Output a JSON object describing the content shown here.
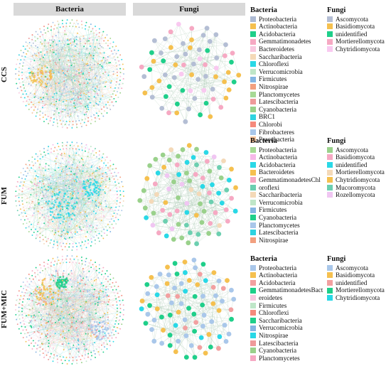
{
  "headers": {
    "bacteria": "Bacteria",
    "fungi": "Fungi"
  },
  "colors": {
    "Proteobacteria": "#aebbd4",
    "Actinobacteria": "#f5c04f",
    "Acidobacteria": "#1fcf8a",
    "Gemmatimonadetes": "#f6a9c3",
    "Bacteroidetes": "#f9c9e0",
    "Saccharibacteria": "#f4d9b8",
    "Chloroflexi": "#29d8e6",
    "Verrucomicrobia": "#bfe6c8",
    "Firmicutes": "#84b6e3",
    "Nitrospirae": "#f2a07f",
    "Planctomycetes": "#a7d995",
    "Latescibacteria": "#ef9a9a",
    "Cyanobacteria": "#9ad18b",
    "BRC1": "#2fd3e0",
    "Chlorobi": "#f58a7c",
    "Fibrobacteres": "#a9c7ea",
    "Parcubacteria": "#f7c49b",
    "Ascomycota": "#b4bed4",
    "Basidiomycota": "#f5c04f",
    "unidentified": "#1fcf8a",
    "Mortierellomycota": "#f6a9c3",
    "Chytridiomycota": "#f9c9f0",
    "Mucoromycota": "#6ccfb0",
    "Rozellomycota": "#f0c6f2"
  },
  "rows": [
    {
      "label": "CCS",
      "bacteria_legend": {
        "title": "Bacteria",
        "items": [
          {
            "label": "Proteobacteria",
            "color": "#aebbd4"
          },
          {
            "label": "Actinobacteria",
            "color": "#f5c04f"
          },
          {
            "label": "Acidobacteria",
            "color": "#1fcf8a"
          },
          {
            "label": "Gemmatimonadetes",
            "color": "#f6a9c3"
          },
          {
            "label": "Bacteroidetes",
            "color": "#f9c9e0"
          },
          {
            "label": "Saccharibacteria",
            "color": "#f4d9b8"
          },
          {
            "label": "Chloroflexi",
            "color": "#29d8e6"
          },
          {
            "label": "Verrucomicrobia",
            "color": "#bfe6c8"
          },
          {
            "label": "Firmicutes",
            "color": "#84b6e3"
          },
          {
            "label": "Nitrospirae",
            "color": "#f2a07f"
          },
          {
            "label": "Planctomycetes",
            "color": "#a7d995"
          },
          {
            "label": "Latescibacteria",
            "color": "#ef9a9a"
          },
          {
            "label": "Cyanobacteria",
            "color": "#9ad18b"
          },
          {
            "label": "BRC1",
            "color": "#2fd3e0"
          },
          {
            "label": "Chlorobi",
            "color": "#f58a7c"
          },
          {
            "label": "Fibrobacteres",
            "color": "#a9c7ea"
          },
          {
            "label": "Parcubacteria",
            "color": "#f7c49b"
          }
        ]
      },
      "fungi_legend": {
        "title": "Fungi",
        "items": [
          {
            "label": "Ascomycota",
            "color": "#b4bed4"
          },
          {
            "label": "Basidiomycota",
            "color": "#f5c04f"
          },
          {
            "label": "unidentified",
            "color": "#1fcf8a"
          },
          {
            "label": "Mortierellomycota",
            "color": "#f6a9c3"
          },
          {
            "label": "Chytridiomycota",
            "color": "#f9c9f0"
          }
        ]
      }
    },
    {
      "label": "FUM",
      "bacteria_legend": {
        "title": "Bacteria",
        "items": [
          {
            "label": "Proteobacteria",
            "color": "#a7d995"
          },
          {
            "label": "Actinobacteria",
            "color": "#f6b8e8"
          },
          {
            "label": "Acidobacteria",
            "color": "#29d8e6"
          },
          {
            "label": "Bacteroidetes",
            "color": "#f5c04f"
          },
          {
            "label": "GemmatimonadetesChl",
            "color": "#f6a9c3"
          },
          {
            "label": "oroflexi",
            "color": "#6ccfb0"
          },
          {
            "label": "Saccharibacteria",
            "color": "#f4d9b8"
          },
          {
            "label": "Verrucomicrobia",
            "color": "#bfe6c8"
          },
          {
            "label": "Firmicutes",
            "color": "#84b6e3"
          },
          {
            "label": "Cyanobacteria",
            "color": "#1fcf8a"
          },
          {
            "label": "Planctomycetes",
            "color": "#a9c7ea"
          },
          {
            "label": "Latescibacteria",
            "color": "#2fd3e0"
          },
          {
            "label": "Nitrospirae",
            "color": "#f2a07f"
          }
        ]
      },
      "fungi_legend": {
        "title": "Fungi",
        "items": [
          {
            "label": "Ascomycota",
            "color": "#9ad18b"
          },
          {
            "label": "Basidiomycota",
            "color": "#f6a9c3"
          },
          {
            "label": "unidentified",
            "color": "#29d8e6"
          },
          {
            "label": "Mortierellomycota",
            "color": "#f4d9b8"
          },
          {
            "label": "Chytridiomycota",
            "color": "#f5c04f"
          },
          {
            "label": "Mucoromycota",
            "color": "#6ccfb0"
          },
          {
            "label": "Rozellomycota",
            "color": "#f0c6f2"
          }
        ]
      }
    },
    {
      "label": "FUM+MIC",
      "bacteria_legend": {
        "title": "Bacteria",
        "items": [
          {
            "label": "Proteobacteria",
            "color": "#a9c7ea"
          },
          {
            "label": "Actinobacteria",
            "color": "#f5c04f"
          },
          {
            "label": "Acidobacteria",
            "color": "#f2a0a0"
          },
          {
            "label": "GemmatimonadetesBact",
            "color": "#1fcf8a"
          },
          {
            "label": "eroidetes",
            "color": "#f9c9e0"
          },
          {
            "label": "Firmicutes",
            "color": "#bfe6c8"
          },
          {
            "label": "Chloroflexi",
            "color": "#f58a7c"
          },
          {
            "label": "Saccharibacteria",
            "color": "#1fcf8a"
          },
          {
            "label": "Verrucomicrobia",
            "color": "#84b6e3"
          },
          {
            "label": "Nitrospirae",
            "color": "#29d8e6"
          },
          {
            "label": "Latescibacteria",
            "color": "#ef9a9a"
          },
          {
            "label": "Cyanobacteria",
            "color": "#9ad18b"
          },
          {
            "label": "Planctomycetes",
            "color": "#f6a9c3"
          }
        ]
      },
      "fungi_legend": {
        "title": "Fungi",
        "items": [
          {
            "label": "Ascomycota",
            "color": "#a9c7ea"
          },
          {
            "label": "Basidiomycota",
            "color": "#f5c04f"
          },
          {
            "label": "unidentified",
            "color": "#f2a0a0"
          },
          {
            "label": "Mortierellomycota",
            "color": "#1fcf8a"
          },
          {
            "label": "Chytridiomycota",
            "color": "#29d8e6"
          }
        ]
      }
    }
  ]
}
